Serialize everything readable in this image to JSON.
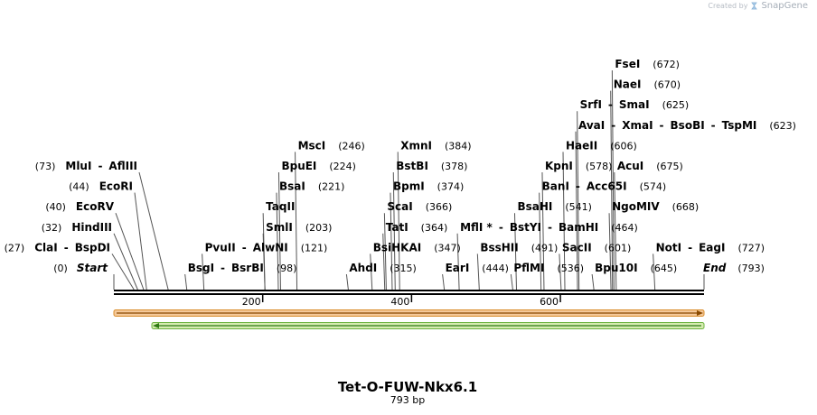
{
  "credit": {
    "prefix": "Created by",
    "brand": "SnapGene",
    "icon": "snapgene-logo-icon"
  },
  "title": "Tet-O-FUW-Nkx6.1",
  "subtitle": "793 bp",
  "sequence_length": 793,
  "terminals": {
    "start_label": "Start",
    "start_pos": "(0)",
    "end_label": "End",
    "end_pos": "(793)"
  },
  "ruler_ticks": [
    {
      "pos": 200,
      "label": "200"
    },
    {
      "pos": 400,
      "label": "400"
    },
    {
      "pos": 600,
      "label": "600"
    }
  ],
  "features": [
    {
      "name": "orange-feature",
      "start": 1,
      "end": 793,
      "direction": "forward",
      "fill": "#f5c99a",
      "stroke": "#d98c2a",
      "arrow": "#8a4a00"
    },
    {
      "name": "green-feature",
      "start": 52,
      "end": 793,
      "direction": "reverse",
      "fill": "#d6ecb0",
      "stroke": "#6db33f",
      "arrow": "#2f7a14"
    }
  ],
  "left_sites": [
    {
      "parts": [
        "ClaI",
        "-",
        "BspDI"
      ],
      "pos_text": "(27)",
      "pos": 27
    },
    {
      "parts": [
        "HindIII"
      ],
      "pos_text": "(32)",
      "pos": 32
    },
    {
      "parts": [
        "EcoRV"
      ],
      "pos_text": "(40)",
      "pos": 40
    },
    {
      "parts": [
        "EcoRI"
      ],
      "pos_text": "(44)",
      "pos": 44
    },
    {
      "parts": [
        "MluI",
        "-",
        "AflIII"
      ],
      "pos_text": "(73)",
      "pos": 73
    }
  ],
  "right_sites": [
    {
      "parts": [
        "BsgI",
        "-",
        "BsrBI"
      ],
      "pos_text": "(98)",
      "pos": 98
    },
    {
      "parts": [
        "PvuII",
        "-",
        "AlwNI"
      ],
      "pos_text": "(121)",
      "pos": 121
    },
    {
      "parts": [
        "SmlI"
      ],
      "pos_text": "(203)",
      "pos": 203
    },
    {
      "parts": [
        "TaqII"
      ],
      "pos_text": "",
      "pos": 203
    },
    {
      "parts": [
        "BsaI"
      ],
      "pos_text": "(221)",
      "pos": 221
    },
    {
      "parts": [
        "BpuEI"
      ],
      "pos_text": "(224)",
      "pos": 224
    },
    {
      "parts": [
        "MscI"
      ],
      "pos_text": "(246)",
      "pos": 246
    },
    {
      "parts": [
        "AhdI"
      ],
      "pos_text": "(315)",
      "pos": 315
    },
    {
      "parts": [
        "BsiHKAI"
      ],
      "pos_text": "(347)",
      "pos": 347
    },
    {
      "parts": [
        "TatI"
      ],
      "pos_text": "(364)",
      "pos": 364
    },
    {
      "parts": [
        "ScaI"
      ],
      "pos_text": "(366)",
      "pos": 366
    },
    {
      "parts": [
        "BpmI"
      ],
      "pos_text": "(374)",
      "pos": 374
    },
    {
      "parts": [
        "BstBI"
      ],
      "pos_text": "(378)",
      "pos": 378
    },
    {
      "parts": [
        "XmnI"
      ],
      "pos_text": "(384)",
      "pos": 384
    },
    {
      "parts": [
        "EarI"
      ],
      "pos_text": "(444)",
      "pos": 444
    },
    {
      "parts": [
        "MflI *",
        "-",
        "BstYI",
        "-",
        "BamHI"
      ],
      "pos_text": "(464)",
      "pos": 464
    },
    {
      "parts": [
        "BssHII"
      ],
      "pos_text": "(491)",
      "pos": 491
    },
    {
      "parts": [
        "PflMI"
      ],
      "pos_text": "(536)",
      "pos": 536
    },
    {
      "parts": [
        "BsaHI"
      ],
      "pos_text": "(541)",
      "pos": 541
    },
    {
      "parts": [
        "BanI",
        "-",
        "Acc65I"
      ],
      "pos_text": "(574)",
      "pos": 574
    },
    {
      "parts": [
        "KpnI"
      ],
      "pos_text": "(578)",
      "pos": 578
    },
    {
      "parts": [
        "SacII"
      ],
      "pos_text": "(601)",
      "pos": 601
    },
    {
      "parts": [
        "HaeII"
      ],
      "pos_text": "(606)",
      "pos": 606
    },
    {
      "parts": [
        "AvaI",
        "-",
        "XmaI",
        "-",
        "BsoBI",
        "-",
        "TspMI"
      ],
      "pos_text": "(623)",
      "pos": 623
    },
    {
      "parts": [
        "SrfI",
        "-",
        "SmaI"
      ],
      "pos_text": "(625)",
      "pos": 625
    },
    {
      "parts": [
        "Bpu10I"
      ],
      "pos_text": "(645)",
      "pos": 645
    },
    {
      "parts": [
        "NgoMIV"
      ],
      "pos_text": "(668)",
      "pos": 668
    },
    {
      "parts": [
        "NaeI"
      ],
      "pos_text": "(670)",
      "pos": 670
    },
    {
      "parts": [
        "FseI"
      ],
      "pos_text": "(672)",
      "pos": 672
    },
    {
      "parts": [
        "AcuI"
      ],
      "pos_text": "(675)",
      "pos": 675
    },
    {
      "parts": [
        "NotI",
        "-",
        "EagI"
      ],
      "pos_text": "(727)",
      "pos": 727
    }
  ]
}
